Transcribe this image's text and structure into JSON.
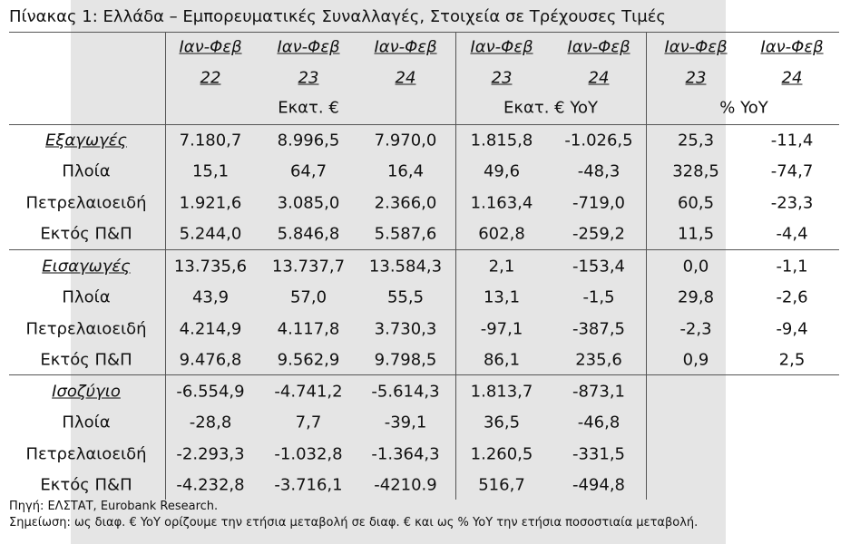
{
  "title": "Πίνακας 1: Ελλάδα – Εμπορευματικές Συναλλαγές, Στοιχεία σε Τρέχουσες Τιμές",
  "table": {
    "columns": [
      {
        "period": "Ιαν-Φεβ",
        "year": "22"
      },
      {
        "period": "Ιαν-Φεβ",
        "year": "23"
      },
      {
        "period": "Ιαν-Φεβ",
        "year": "24"
      },
      {
        "period": "Ιαν-Φεβ",
        "year": "23"
      },
      {
        "period": "Ιαν-Φεβ",
        "year": "24"
      },
      {
        "period": "Ιαν-Φεβ",
        "year": "23"
      },
      {
        "period": "Ιαν-Φεβ",
        "year": "24"
      }
    ],
    "units": [
      "Εκατ. €",
      "Εκατ. € YoY",
      "% YoY"
    ],
    "groups": [
      {
        "rows": [
          {
            "label": "Εξαγωγές",
            "cells": [
              "7.180,7",
              "8.996,5",
              "7.970,0",
              "1.815,8",
              "-1.026,5",
              "25,3",
              "-11,4"
            ]
          },
          {
            "label": "Πλοία",
            "cells": [
              "15,1",
              "64,7",
              "16,4",
              "49,6",
              "-48,3",
              "328,5",
              "-74,7"
            ]
          },
          {
            "label": "Πετρελαιοειδή",
            "cells": [
              "1.921,6",
              "3.085,0",
              "2.366,0",
              "1.163,4",
              "-719,0",
              "60,5",
              "-23,3"
            ]
          },
          {
            "label": "Εκτός Π&Π",
            "cells": [
              "5.244,0",
              "5.846,8",
              "5.587,6",
              "602,8",
              "-259,2",
              "11,5",
              "-4,4"
            ]
          }
        ]
      },
      {
        "rows": [
          {
            "label": "Εισαγωγές",
            "cells": [
              "13.735,6",
              "13.737,7",
              "13.584,3",
              "2,1",
              "-153,4",
              "0,0",
              "-1,1"
            ]
          },
          {
            "label": "Πλοία",
            "cells": [
              "43,9",
              "57,0",
              "55,5",
              "13,1",
              "-1,5",
              "29,8",
              "-2,6"
            ]
          },
          {
            "label": "Πετρελαιοειδή",
            "cells": [
              "4.214,9",
              "4.117,8",
              "3.730,3",
              "-97,1",
              "-387,5",
              "-2,3",
              "-9,4"
            ]
          },
          {
            "label": "Εκτός Π&Π",
            "cells": [
              "9.476,8",
              "9.562,9",
              "9.798,5",
              "86,1",
              "235,6",
              "0,9",
              "2,5"
            ]
          }
        ]
      },
      {
        "rows": [
          {
            "label": "Ισοζύγιο",
            "cells": [
              "-6.554,9",
              "-4.741,2",
              "-5.614,3",
              "1.813,7",
              "-873,1"
            ]
          },
          {
            "label": "Πλοία",
            "cells": [
              "-28,8",
              "7,7",
              "-39,1",
              "36,5",
              "-46,8"
            ]
          },
          {
            "label": "Πετρελαιοειδή",
            "cells": [
              "-2.293,3",
              "-1.032,8",
              "-1.364,3",
              "1.260,5",
              "-331,5"
            ]
          },
          {
            "label": "Εκτός Π&Π",
            "cells": [
              "-4.232,8",
              "-3.716,1",
              "-4210.9",
              "516,7",
              "-494,8"
            ]
          }
        ]
      }
    ]
  },
  "source": "Πηγή: ΕΛΣΤΑΤ, Eurobank Research.",
  "note": "Σημείωση: ως διαφ. € YoY ορίζουμε την ετήσια μεταβολή σε διαφ. € και ως % YoY την ετήσια ποσοστιαία μεταβολή."
}
